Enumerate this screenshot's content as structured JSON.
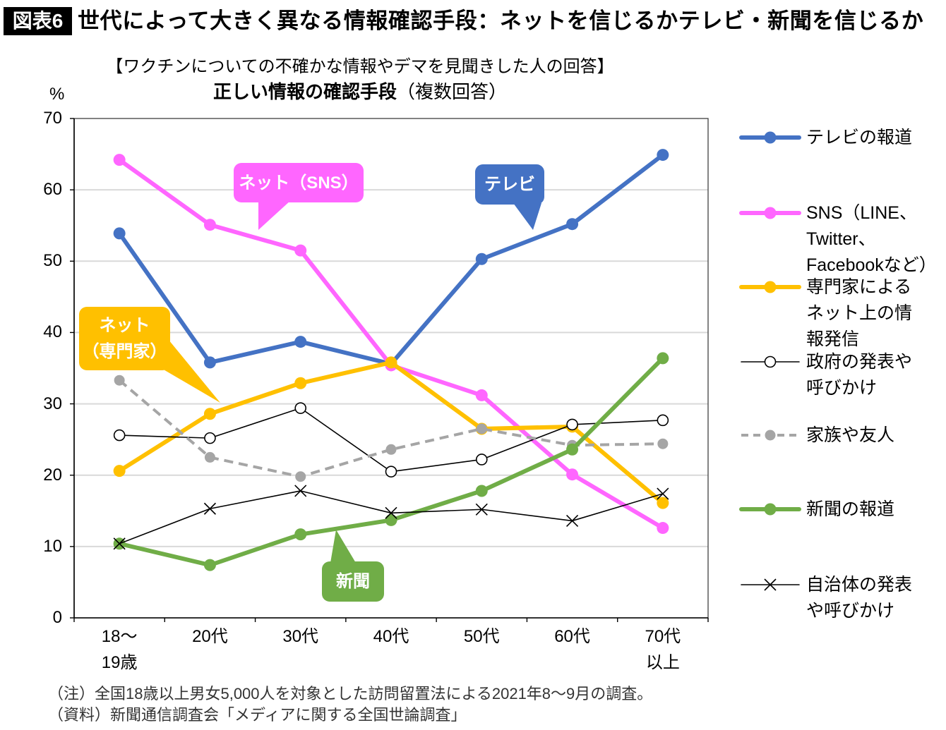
{
  "header": {
    "badge": "図表6",
    "title": "世代によって大きく異なる情報確認手段：ネットを信じるかテレビ・新聞を信じるか"
  },
  "chart_data": {
    "type": "line",
    "title": "【ワクチンについての不確かな情報やデマを見聞きした人の回答】",
    "subtitle": {
      "emphasis": "正しい情報の確認手段",
      "note": "（複数回答）"
    },
    "ylabel": "%",
    "ylim": [
      0,
      70
    ],
    "yticks": [
      0,
      10,
      20,
      30,
      40,
      50,
      60,
      70
    ],
    "categories": [
      "18～\n19歳",
      "20代",
      "30代",
      "40代",
      "50代",
      "60代",
      "70代\n以上"
    ],
    "grid": true,
    "legend_position": "right",
    "series": [
      {
        "name": "テレビの報道",
        "color": "#4472C4",
        "line_style": "solid",
        "marker": "circle",
        "values": [
          53.9,
          35.8,
          38.7,
          35.6,
          50.3,
          55.2,
          64.9
        ]
      },
      {
        "name": "SNS（LINE、\nTwitter、\nFacebookなど）",
        "color": "#FF66FF",
        "line_style": "solid",
        "marker": "circle",
        "values": [
          64.2,
          55.1,
          51.5,
          35.4,
          31.2,
          20.1,
          12.6
        ]
      },
      {
        "name": "専門家による\nネット上の情\n報発信",
        "color": "#FFC000",
        "line_style": "solid",
        "marker": "circle",
        "values": [
          20.6,
          28.6,
          32.9,
          35.8,
          26.5,
          26.8,
          16.1
        ]
      },
      {
        "name": "政府の発表や\n呼びかけ",
        "color": "#000000",
        "line_style": "solid",
        "marker": "open-circle",
        "values": [
          25.6,
          25.2,
          29.4,
          20.5,
          22.2,
          27.1,
          27.7
        ]
      },
      {
        "name": "家族や友人",
        "color": "#A5A5A5",
        "line_style": "dashed",
        "marker": "circle",
        "values": [
          33.3,
          22.5,
          19.8,
          23.6,
          26.5,
          24.2,
          24.4
        ]
      },
      {
        "name": "新聞の報道",
        "color": "#70AD47",
        "line_style": "solid",
        "marker": "circle",
        "values": [
          10.4,
          7.4,
          11.7,
          13.7,
          17.8,
          23.6,
          36.4
        ]
      },
      {
        "name": "自治体の発表\nや呼びかけ",
        "color": "#000000",
        "line_style": "solid",
        "marker": "cross",
        "values": [
          10.4,
          15.3,
          17.8,
          14.7,
          15.2,
          13.6,
          17.4
        ]
      }
    ],
    "annotations": [
      {
        "text": "ネット（SNS）",
        "color": "#FF66FF"
      },
      {
        "text": "テレビ",
        "color": "#4472C4"
      },
      {
        "text": "ネット\n（専門家）",
        "color": "#FFC000"
      },
      {
        "text": "新聞",
        "color": "#70AD47"
      }
    ]
  },
  "notes": [
    "（注）全国18歳以上男女5,000人を対象とした訪問留置法による2021年8～9月の調査。",
    "（資料）新聞通信調査会「メディアに関する全国世論調査」"
  ]
}
